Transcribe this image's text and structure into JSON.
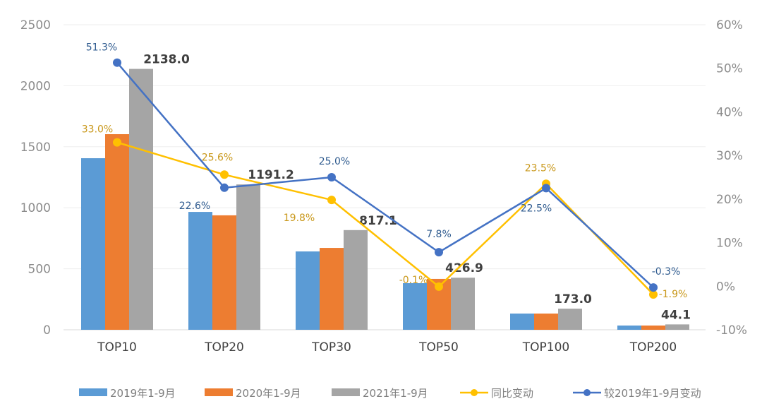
{
  "chart_data": {
    "type": "bar+line",
    "categories": [
      "TOP10",
      "TOP20",
      "TOP30",
      "TOP50",
      "TOP100",
      "TOP200"
    ],
    "series": [
      {
        "name": "2019年1-9月",
        "type": "bar",
        "axis": "left",
        "color": "#5B9BD5",
        "values": [
          1406,
          966,
          642,
          382,
          133,
          35
        ]
      },
      {
        "name": "2020年1-9月",
        "type": "bar",
        "axis": "left",
        "color": "#ED7D31",
        "values": [
          1603,
          938,
          671,
          417,
          133,
          35
        ]
      },
      {
        "name": "2021年1-9月",
        "type": "bar",
        "axis": "left",
        "color": "#A5A5A5",
        "values": [
          2138.0,
          1191.2,
          817.1,
          426.9,
          173.0,
          44.1
        ],
        "labels": [
          "2138.0",
          "1191.2",
          "817.1",
          "426.9",
          "173.0",
          "44.1"
        ]
      },
      {
        "name": "同比变动",
        "type": "line",
        "axis": "right",
        "color": "#FFC000",
        "label_color": "#C9981B",
        "values": [
          33.0,
          25.6,
          19.8,
          -0.1,
          23.5,
          -1.9
        ],
        "labels": [
          "33.0%",
          "25.6%",
          "19.8%",
          "-0.1%",
          "23.5%",
          "-1.9%"
        ]
      },
      {
        "name": "较2019年1-9月变动",
        "type": "line",
        "axis": "right",
        "color": "#4472C4",
        "label_color": "#2F5B8F",
        "values": [
          51.3,
          22.6,
          25.0,
          7.8,
          22.5,
          -0.3
        ],
        "labels": [
          "51.3%",
          "22.6%",
          "25.0%",
          "7.8%",
          "22.5%",
          "-0.3%"
        ]
      }
    ],
    "y_left": {
      "lim": [
        0,
        2500
      ],
      "ticks": [
        "0",
        "500",
        "1000",
        "1500",
        "2000",
        "2500"
      ]
    },
    "y_right": {
      "lim": [
        -10,
        60
      ],
      "ticks": [
        "-10%",
        "0%",
        "10%",
        "20%",
        "30%",
        "40%",
        "50%",
        "60%"
      ]
    },
    "grid": true,
    "legend": "bottom"
  }
}
